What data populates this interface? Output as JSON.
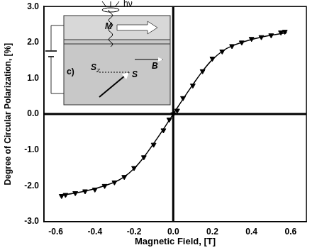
{
  "chart_data": {
    "type": "scatter",
    "x_label": "Magnetic Field, [T]",
    "y_label": "Degree of Circular Polarization, [%]",
    "xlim": [
      -0.66,
      0.68
    ],
    "ylim": [
      -3.0,
      3.0
    ],
    "xticks": [
      -0.6,
      -0.4,
      -0.2,
      {
        "value": 0,
        "label": "0.0"
      },
      0.2,
      0.4,
      0.6
    ],
    "yticks": [
      {
        "value": -3,
        "label": "-3.0"
      },
      {
        "value": -2,
        "label": "-2.0"
      },
      {
        "value": -1,
        "label": "-1.0"
      },
      {
        "value": 0,
        "label": "0.0"
      },
      {
        "value": 1,
        "label": "1.0"
      },
      {
        "value": 2,
        "label": "2.0"
      },
      {
        "value": 3,
        "label": "3.0"
      }
    ],
    "grid": false,
    "annotations": [
      "c)",
      "M",
      "B",
      "S",
      "SZ",
      "hν"
    ],
    "series": [
      {
        "type": "scatter",
        "marker": "triangle_down",
        "color": "#000000",
        "x": [
          -0.57,
          -0.55,
          -0.5,
          -0.45,
          -0.4,
          -0.35,
          -0.3,
          -0.25,
          -0.2,
          -0.15,
          -0.1,
          -0.05,
          -0.02,
          0,
          0.02,
          0.05,
          0.1,
          0.15,
          0.2,
          0.25,
          0.3,
          0.35,
          0.4,
          0.45,
          0.5,
          0.55,
          0.57
        ],
        "values": [
          -2.28,
          -2.25,
          -2.2,
          -2.15,
          -2.1,
          -2.0,
          -1.9,
          -1.75,
          -1.5,
          -1.2,
          -0.85,
          -0.45,
          -0.15,
          0,
          0.1,
          0.45,
          0.8,
          1.2,
          1.55,
          1.75,
          1.9,
          2.0,
          2.1,
          2.15,
          2.2,
          2.28,
          2.3
        ]
      },
      {
        "type": "line",
        "line_style": "solid",
        "color": "#000000",
        "x": [
          -0.58,
          -0.5,
          -0.4,
          -0.3,
          -0.25,
          -0.2,
          -0.15,
          -0.1,
          -0.05,
          0,
          0.05,
          0.1,
          0.15,
          0.2,
          0.25,
          0.3,
          0.4,
          0.5,
          0.58
        ],
        "values": [
          -2.27,
          -2.2,
          -2.08,
          -1.9,
          -1.75,
          -1.52,
          -1.2,
          -0.82,
          -0.42,
          0,
          0.42,
          0.82,
          1.2,
          1.52,
          1.75,
          1.9,
          2.08,
          2.2,
          2.27
        ]
      }
    ]
  }
}
